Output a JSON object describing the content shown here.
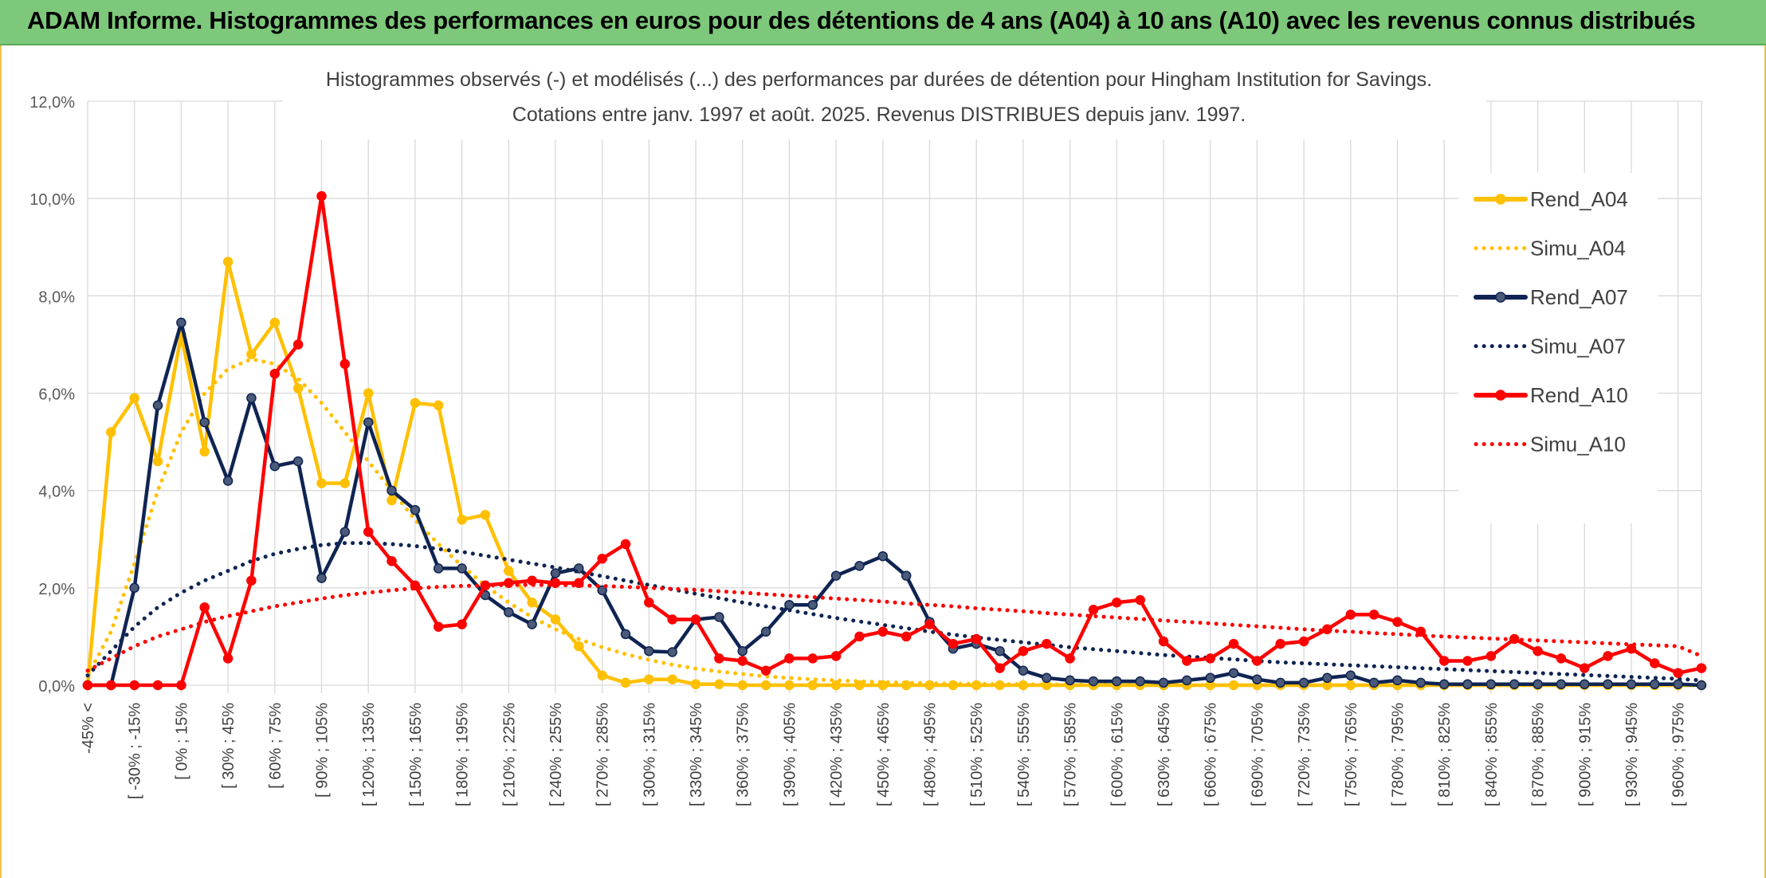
{
  "banner": {
    "title": "ADAM Informe. Histogrammes des performances en euros pour des détentions de 4 ans (A04) à 10 ans (A10) avec les revenus connus distribués"
  },
  "colors": {
    "banner_bg": "#7dc87a",
    "a04": "#ffc000",
    "a07": "#0f2452",
    "a10": "#ff0000",
    "grid": "#d9d9d9"
  },
  "chart_data": {
    "type": "line",
    "title": "Histogrammes observés (-) et modélisés (...) des performances par durées de détention pour Hingham Institution for Savings.",
    "subtitle": "Cotations entre janv. 1997 et août. 2025. Revenus DISTRIBUES depuis janv. 1997.",
    "ylim": [
      0,
      12
    ],
    "y_ticks": [
      "0,0%",
      "2,0%",
      "4,0%",
      "6,0%",
      "8,0%",
      "10,0%",
      "12,0%"
    ],
    "grid": true,
    "legend_position": "right",
    "x_labels": [
      "-45% <",
      "[ -30% ; -15%",
      "[ 0% ; 15%",
      "[ 30% ; 45%",
      "[ 60% ; 75%",
      "[ 90% ; 105%",
      "[ 120% ; 135%",
      "[ 150% ; 165%",
      "[ 180% ; 195%",
      "[ 210% ; 225%",
      "[ 240% ; 255%",
      "[ 270% ; 285%",
      "[ 300% ; 315%",
      "[ 330% ; 345%",
      "[ 360% ; 375%",
      "[ 390% ; 405%",
      "[ 420% ; 435%",
      "[ 450% ; 465%",
      "[ 480% ; 495%",
      "[ 510% ; 525%",
      "[ 540% ; 555%",
      "[ 570% ; 585%",
      "[ 600% ; 615%",
      "[ 630% ; 645%",
      "[ 660% ; 675%",
      "[ 690% ; 705%",
      "[ 720% ; 735%",
      "[ 750% ; 765%",
      "[ 780% ; 795%",
      "[ 810% ; 825%",
      "[ 840% ; 855%",
      "[ 870% ; 885%",
      "[ 900% ; 915%",
      "[ 930% ; 945%",
      "[ 960% ; 975%"
    ],
    "series": [
      {
        "name": "Rend_A04",
        "style": "solid",
        "color": "#ffc000",
        "values": [
          0.0,
          5.2,
          5.9,
          4.6,
          7.2,
          4.8,
          8.7,
          6.8,
          7.45,
          6.1,
          4.15,
          4.15,
          6.0,
          3.8,
          5.8,
          5.75,
          3.4,
          3.5,
          2.35,
          1.7,
          1.35,
          0.8,
          0.2,
          0.05,
          0.12,
          0.12,
          0.02,
          0.02,
          0.0,
          0.0,
          0.0,
          0.0,
          0.0,
          0.0,
          0.0,
          0.0,
          0.0,
          0.0,
          0.0,
          0.0,
          0.0,
          0.0,
          0.0,
          0.0,
          0.0,
          0.0,
          0.0,
          0.0,
          0.0,
          0.0,
          0.0,
          0.0,
          0.0,
          0.0,
          0.0,
          0.0,
          0.0,
          0.0,
          0.0,
          0.0,
          0.0,
          0.0,
          0.0,
          0.0,
          0.0,
          0.0,
          0.0,
          0.0,
          0.0,
          0.0
        ]
      },
      {
        "name": "Simu_A04",
        "style": "dotted",
        "color": "#ffc000",
        "values": [
          0.2,
          1.1,
          2.5,
          4.0,
          5.2,
          6.0,
          6.5,
          6.7,
          6.6,
          6.3,
          5.8,
          5.2,
          4.6,
          4.0,
          3.4,
          2.9,
          2.45,
          2.05,
          1.7,
          1.4,
          1.15,
          0.95,
          0.78,
          0.64,
          0.52,
          0.42,
          0.34,
          0.28,
          0.23,
          0.18,
          0.15,
          0.12,
          0.1,
          0.08,
          0.06,
          0.05,
          0.04,
          0.03,
          0.03,
          0.02,
          0.02,
          0.01,
          0.01,
          0.01,
          0.01,
          0.0,
          0.0,
          0.0,
          0.0,
          0.0,
          0.0,
          0.0,
          0.0,
          0.0,
          0.0,
          0.0,
          0.0,
          0.0,
          0.0,
          0.0,
          0.0,
          0.0,
          0.0,
          0.0,
          0.0,
          0.0,
          0.0,
          0.0,
          0.0,
          0.0
        ]
      },
      {
        "name": "Rend_A07",
        "style": "solid",
        "color": "#0f2452",
        "values": [
          0.0,
          0.0,
          2.0,
          5.75,
          7.45,
          5.4,
          4.2,
          5.9,
          4.5,
          4.6,
          2.2,
          3.15,
          5.4,
          4.0,
          3.6,
          2.4,
          2.4,
          1.85,
          1.5,
          1.25,
          2.3,
          2.4,
          1.95,
          1.05,
          0.7,
          0.68,
          1.35,
          1.4,
          0.7,
          1.1,
          1.65,
          1.65,
          2.25,
          2.45,
          2.65,
          2.25,
          1.3,
          0.75,
          0.85,
          0.7,
          0.3,
          0.15,
          0.1,
          0.08,
          0.08,
          0.08,
          0.05,
          0.1,
          0.15,
          0.25,
          0.12,
          0.05,
          0.05,
          0.15,
          0.2,
          0.05,
          0.1,
          0.05,
          0.02,
          0.02,
          0.02,
          0.02,
          0.02,
          0.02,
          0.02,
          0.02,
          0.02,
          0.02,
          0.02,
          0.0
        ]
      },
      {
        "name": "Simu_A07",
        "style": "dotted",
        "color": "#0f2452",
        "values": [
          0.2,
          0.7,
          1.2,
          1.6,
          1.9,
          2.15,
          2.35,
          2.55,
          2.7,
          2.8,
          2.88,
          2.92,
          2.92,
          2.9,
          2.86,
          2.8,
          2.74,
          2.66,
          2.58,
          2.5,
          2.42,
          2.33,
          2.24,
          2.15,
          2.06,
          1.97,
          1.88,
          1.79,
          1.7,
          1.62,
          1.54,
          1.46,
          1.38,
          1.31,
          1.24,
          1.17,
          1.1,
          1.04,
          0.98,
          0.93,
          0.88,
          0.83,
          0.78,
          0.74,
          0.7,
          0.66,
          0.62,
          0.59,
          0.56,
          0.53,
          0.5,
          0.47,
          0.45,
          0.43,
          0.41,
          0.39,
          0.37,
          0.35,
          0.33,
          0.31,
          0.29,
          0.27,
          0.25,
          0.23,
          0.21,
          0.19,
          0.17,
          0.15,
          0.13,
          0.1
        ]
      },
      {
        "name": "Rend_A10",
        "style": "solid",
        "color": "#ff0000",
        "values": [
          0.0,
          0.0,
          0.0,
          0.0,
          0.0,
          1.6,
          0.55,
          2.15,
          6.4,
          7.0,
          10.05,
          6.6,
          3.15,
          2.55,
          2.05,
          1.2,
          1.25,
          2.05,
          2.1,
          2.15,
          2.1,
          2.1,
          2.6,
          2.9,
          1.7,
          1.35,
          1.35,
          0.55,
          0.5,
          0.3,
          0.55,
          0.55,
          0.6,
          1.0,
          1.1,
          1.0,
          1.25,
          0.85,
          0.95,
          0.35,
          0.7,
          0.85,
          0.55,
          1.55,
          1.7,
          1.75,
          0.9,
          0.5,
          0.55,
          0.85,
          0.5,
          0.85,
          0.9,
          1.15,
          1.45,
          1.45,
          1.3,
          1.1,
          0.5,
          0.5,
          0.6,
          0.95,
          0.7,
          0.55,
          0.35,
          0.6,
          0.75,
          0.45,
          0.25,
          0.35
        ]
      },
      {
        "name": "Simu_A10",
        "style": "dotted",
        "color": "#ff0000",
        "values": [
          0.3,
          0.55,
          0.8,
          1.0,
          1.15,
          1.3,
          1.42,
          1.52,
          1.62,
          1.7,
          1.78,
          1.85,
          1.9,
          1.95,
          1.99,
          2.02,
          2.04,
          2.05,
          2.06,
          2.06,
          2.06,
          2.05,
          2.04,
          2.02,
          2.0,
          1.98,
          1.96,
          1.93,
          1.9,
          1.87,
          1.84,
          1.81,
          1.78,
          1.75,
          1.72,
          1.68,
          1.65,
          1.62,
          1.58,
          1.55,
          1.52,
          1.48,
          1.45,
          1.42,
          1.39,
          1.36,
          1.33,
          1.3,
          1.27,
          1.24,
          1.21,
          1.18,
          1.15,
          1.12,
          1.1,
          1.07,
          1.05,
          1.02,
          1.0,
          0.98,
          0.96,
          0.94,
          0.92,
          0.9,
          0.88,
          0.86,
          0.84,
          0.82,
          0.8,
          0.6
        ]
      }
    ]
  }
}
